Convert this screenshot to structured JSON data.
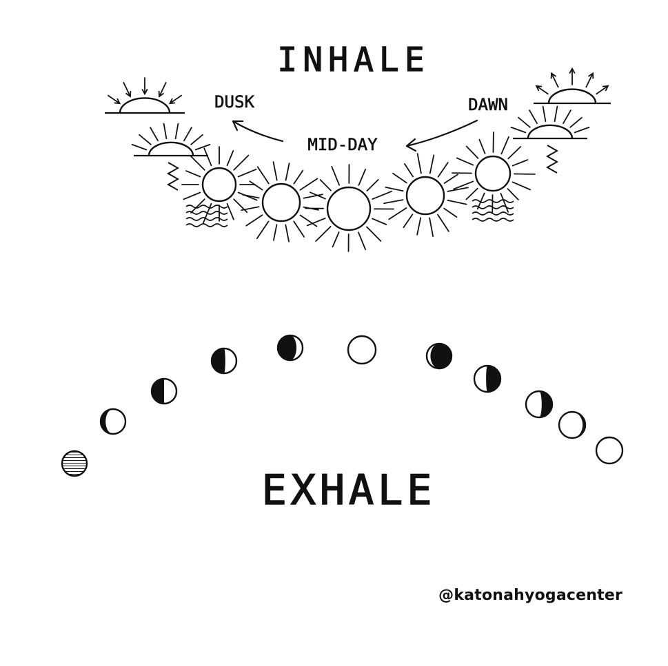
{
  "title_top": "INHALE",
  "title_bottom": "EXHALE",
  "labels": {
    "dusk": "DUSK",
    "midday": "MID-DAY",
    "dawn": "DAWN"
  },
  "credit": "@katonahyogacenter",
  "suns_count": 9,
  "moon_phases_count": 11,
  "ink_color": "#111111",
  "background": "#ffffff"
}
